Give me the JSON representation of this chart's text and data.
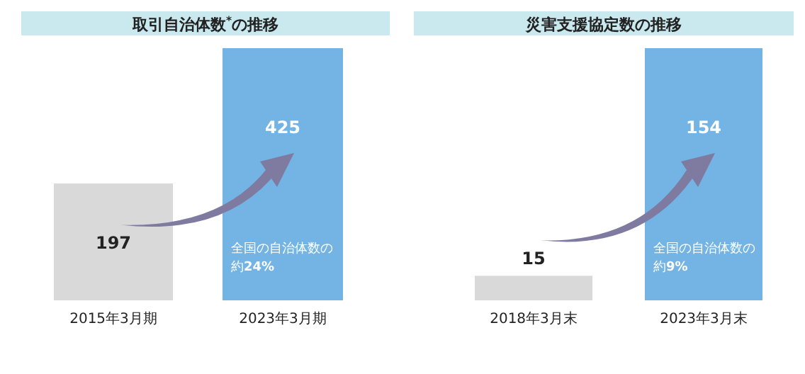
{
  "chart_data": [
    {
      "type": "bar",
      "title": "取引自治体数$^{*}$の推移",
      "categories": [
        "2015年3月期",
        "2023年3月期"
      ],
      "values": [
        197,
        425
      ],
      "colors": [
        "#d9d9d9",
        "#74b4e4"
      ],
      "data_labels": true,
      "annotations": [
        "全国の自治体数の約**24%**"
      ]
    },
    {
      "type": "bar",
      "title": "災害支援協定数の推移",
      "categories": [
        "2018年3月末",
        "2023年3月末"
      ],
      "values": [
        15,
        154
      ],
      "colors": [
        "#d9d9d9",
        "#74b4e4"
      ],
      "data_labels": true,
      "annotations": [
        "全国の自治体数の約**9%**"
      ]
    }
  ]
}
